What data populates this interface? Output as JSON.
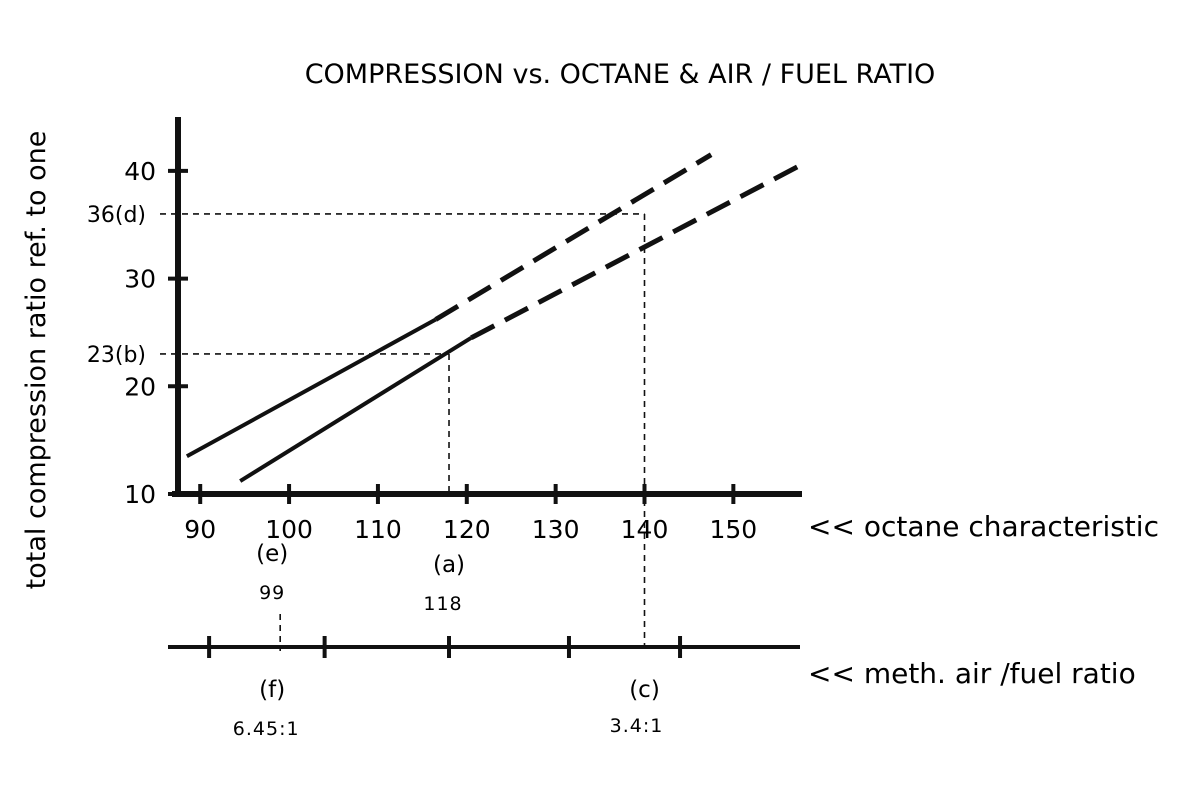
{
  "colors": {
    "ink": "#111111",
    "background": "#ffffff"
  },
  "chart_data": {
    "type": "line",
    "title": "COMPRESSION vs. OCTANE & AIR / FUEL RATIO",
    "ylabel": "total compression ratio ref. to one",
    "xlabel": "<< octane characteristic",
    "x2label": "<< meth. air /fuel ratio",
    "xlim": [
      87.5,
      157.5
    ],
    "ylim": [
      10,
      45
    ],
    "x_ticks": [
      90,
      100,
      110,
      120,
      130,
      140,
      150
    ],
    "x_tick_labels": [
      "90",
      "100",
      "110",
      "120",
      "130",
      "140",
      "150"
    ],
    "y_ticks": [
      10,
      20,
      30,
      40
    ],
    "y_tick_labels": [
      "10",
      "20",
      "30",
      "40"
    ],
    "grid": false,
    "x2_tick_positions_octane": [
      91,
      104,
      118,
      131.5,
      144
    ],
    "series": [
      {
        "solid": [
          [
            88.5,
            13.5
          ],
          [
            116.5,
            26.2
          ]
        ],
        "dashed": [
          [
            116.5,
            26.2
          ],
          [
            147.5,
            41.5
          ]
        ]
      },
      {
        "solid": [
          [
            94.5,
            11.2
          ],
          [
            120.5,
            24.5
          ]
        ],
        "dashed": [
          [
            120.5,
            24.5
          ],
          [
            157.5,
            40.5
          ]
        ]
      }
    ],
    "references": [
      {
        "label": "(a)",
        "x": 118,
        "value_label": "118"
      },
      {
        "label": "23(b)",
        "y": 23
      },
      {
        "label": "(c)",
        "x": 140,
        "value_label": "3.4:1"
      },
      {
        "label": "36(d)",
        "y": 36
      },
      {
        "label": "(e)",
        "x": 99,
        "value_label": "99"
      },
      {
        "label": "(f)",
        "x": 99,
        "value_label": "6.45:1"
      }
    ]
  }
}
